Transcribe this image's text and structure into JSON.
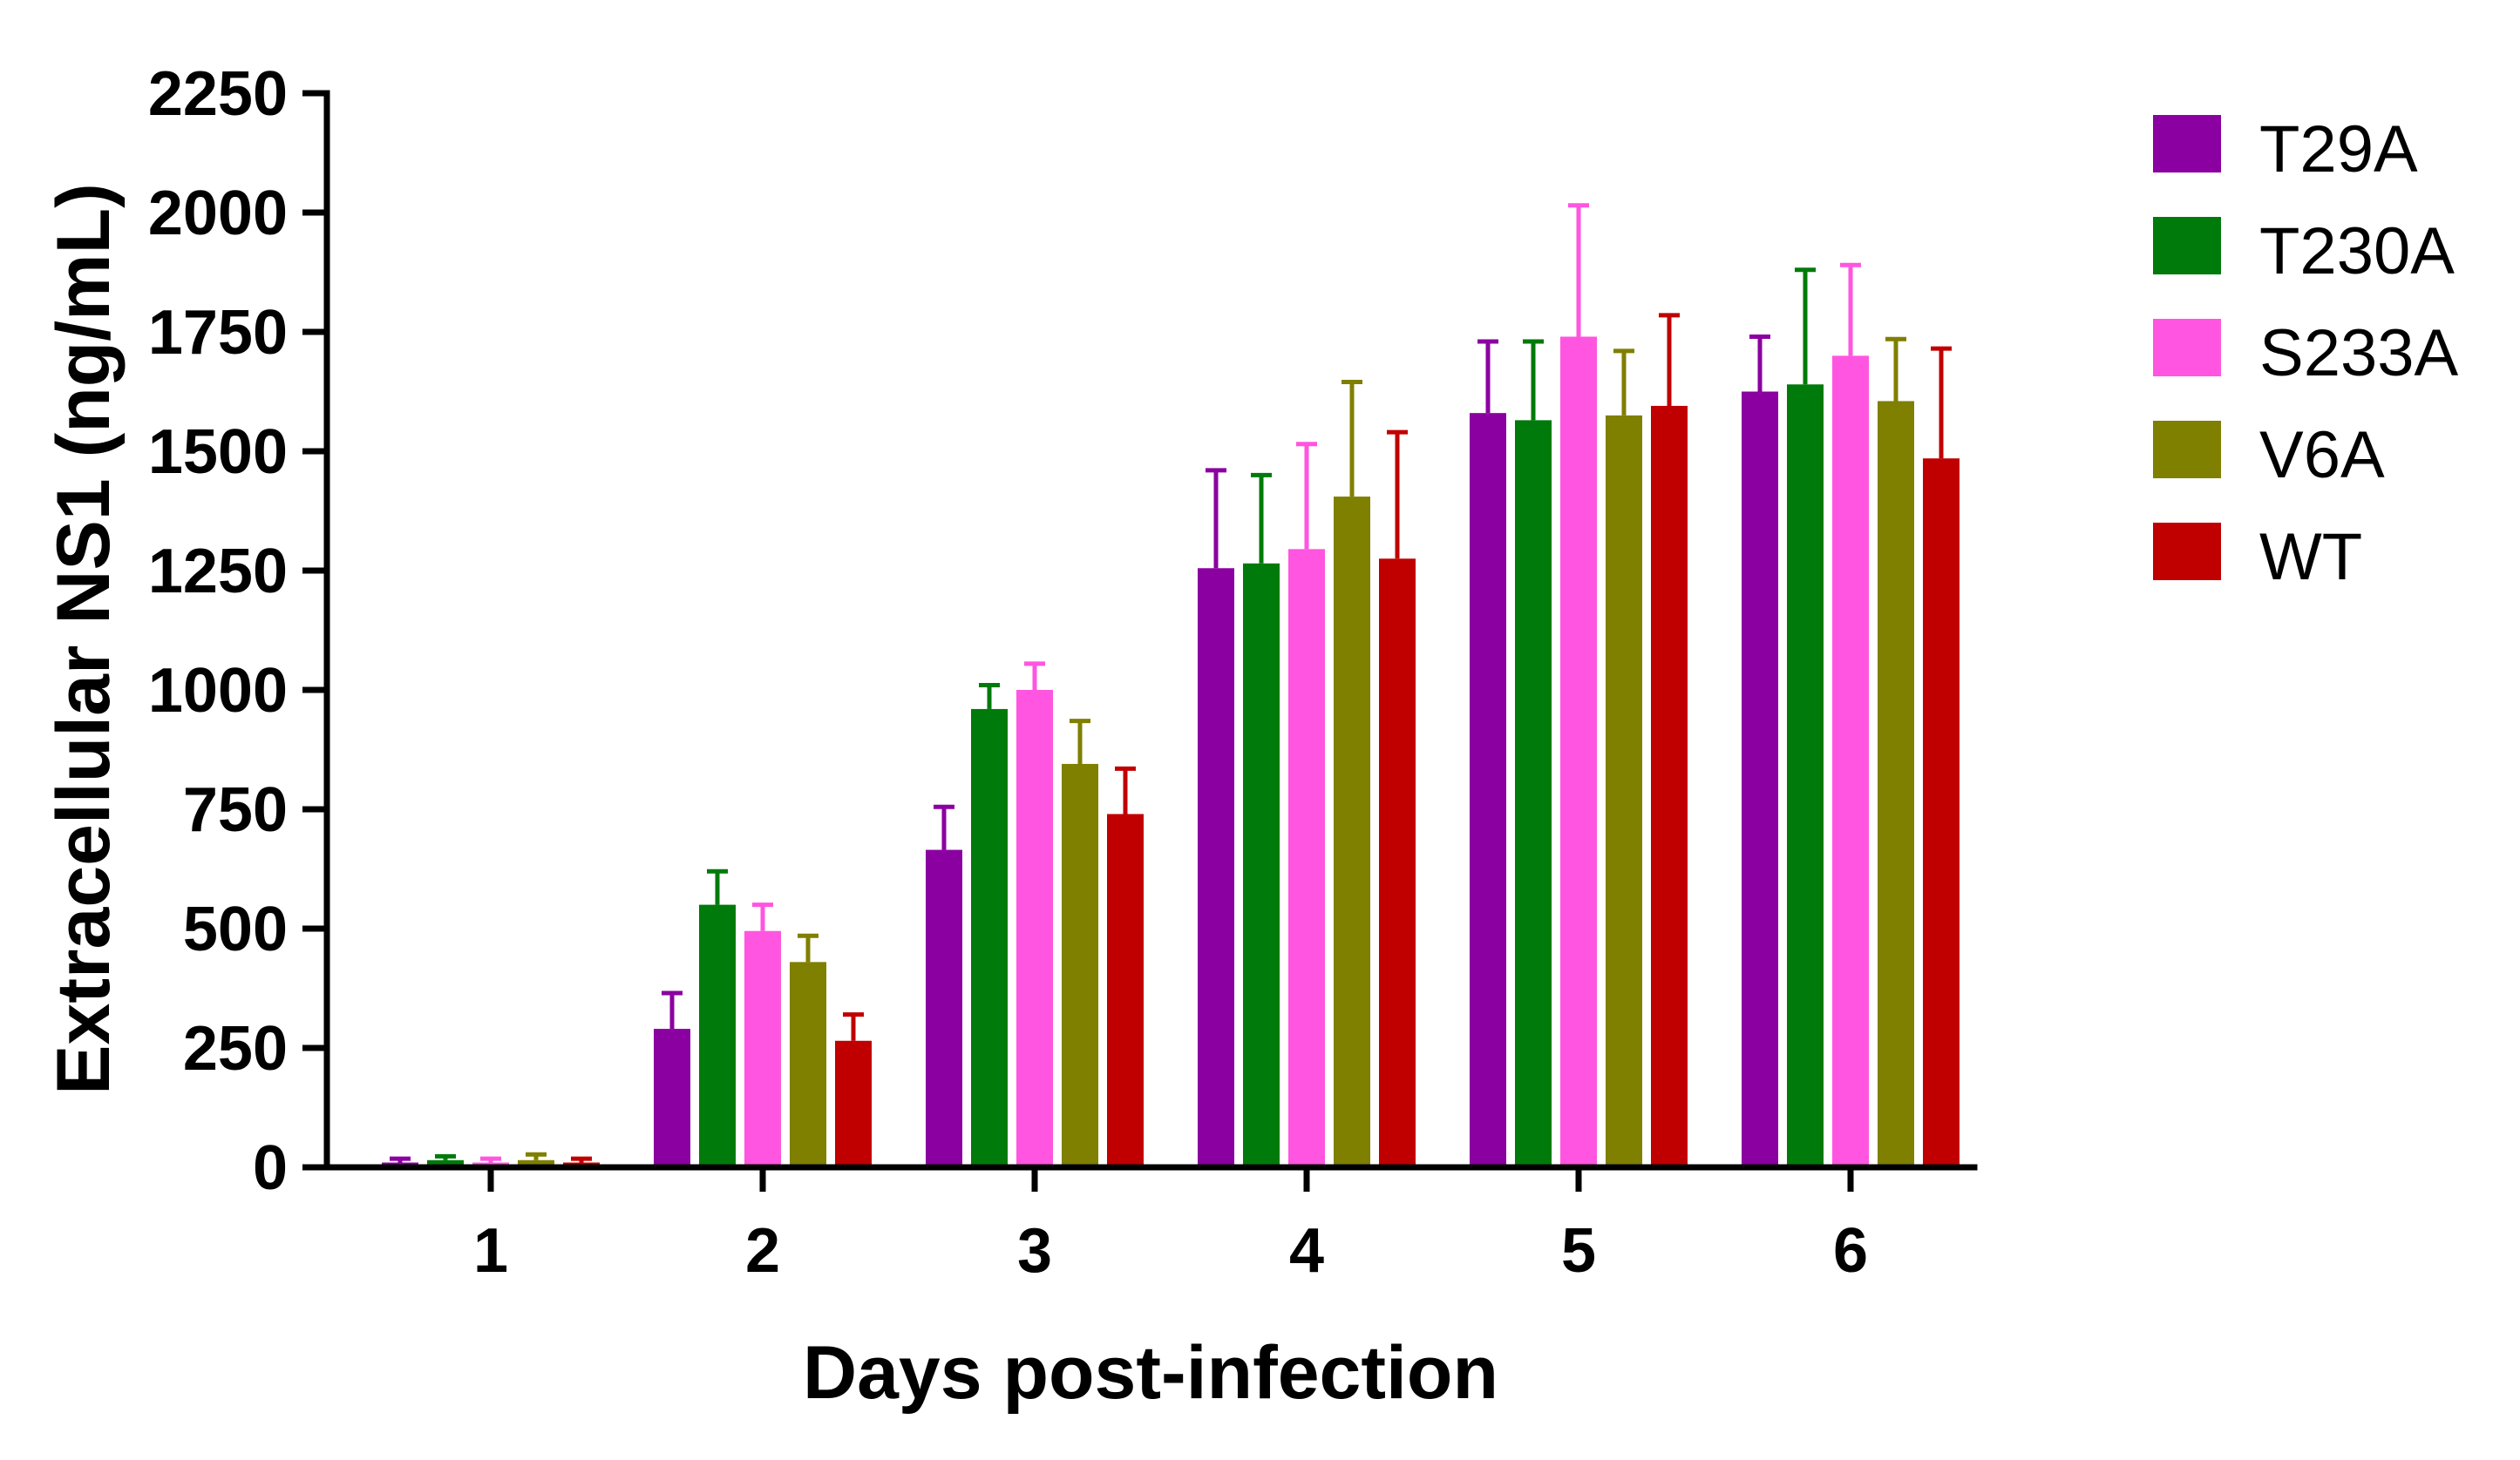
{
  "chart_data": {
    "type": "bar",
    "title": "",
    "xlabel": "Days post-infection",
    "ylabel": "Extracellular NS1 (ng/mL)",
    "ylim": [
      0,
      2250
    ],
    "yticks": [
      0,
      250,
      500,
      750,
      1000,
      1250,
      1500,
      1750,
      2000,
      2250
    ],
    "categories": [
      "1",
      "2",
      "3",
      "4",
      "5",
      "6"
    ],
    "grid": false,
    "legend_position": "right",
    "error_bars": "upper",
    "series": [
      {
        "name": "T29A",
        "color": "#8B00A0",
        "values": [
          10,
          290,
          665,
          1255,
          1580,
          1625
        ],
        "errors": [
          8,
          75,
          90,
          205,
          150,
          115
        ]
      },
      {
        "name": "T230A",
        "color": "#007A0A",
        "values": [
          15,
          550,
          960,
          1265,
          1565,
          1640
        ],
        "errors": [
          8,
          70,
          50,
          185,
          165,
          240
        ]
      },
      {
        "name": "S233A",
        "color": "#FF55E0",
        "values": [
          10,
          495,
          1000,
          1295,
          1740,
          1700
        ],
        "errors": [
          8,
          55,
          55,
          220,
          275,
          190
        ]
      },
      {
        "name": "V6A",
        "color": "#7F7F00",
        "values": [
          15,
          430,
          845,
          1405,
          1575,
          1605
        ],
        "errors": [
          12,
          55,
          90,
          240,
          135,
          130
        ]
      },
      {
        "name": "WT",
        "color": "#C00000",
        "values": [
          10,
          265,
          740,
          1275,
          1595,
          1485
        ],
        "errors": [
          8,
          55,
          95,
          265,
          190,
          230
        ]
      }
    ]
  }
}
